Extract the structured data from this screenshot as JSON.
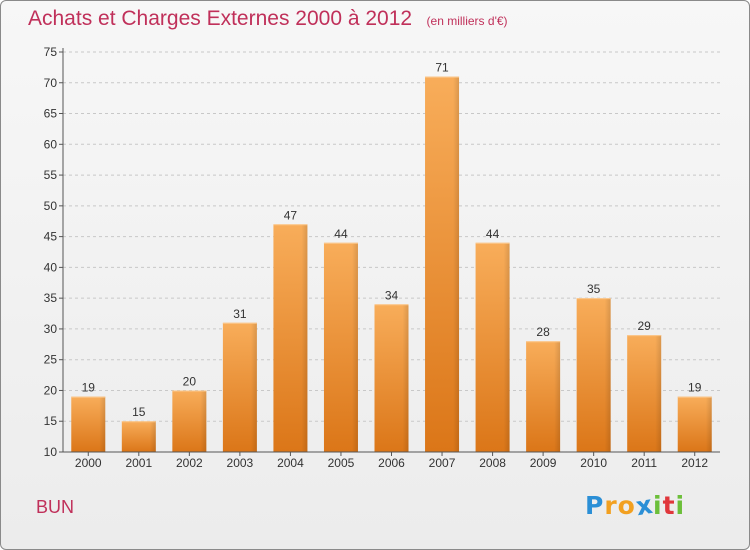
{
  "header": {
    "title": "Achats et Charges Externes 2000 à 2012",
    "subtitle": "(en milliers d'€)"
  },
  "footer": {
    "city": "BUN",
    "logo": {
      "letters": [
        "P",
        "r",
        "o",
        "x",
        "i",
        "t",
        "i"
      ],
      "colors": [
        "#2b8fd6",
        "#f2a020",
        "#f2a020",
        "#2b8fd6",
        "#6cbf3a",
        "#e0373c",
        "#6cbf3a"
      ]
    }
  },
  "chart_data": {
    "type": "bar",
    "categories": [
      "2000",
      "2001",
      "2002",
      "2003",
      "2004",
      "2005",
      "2006",
      "2007",
      "2008",
      "2009",
      "2010",
      "2011",
      "2012"
    ],
    "values": [
      19,
      15,
      20,
      31,
      47,
      44,
      34,
      71,
      44,
      28,
      35,
      29,
      19
    ],
    "yticks": [
      10,
      15,
      20,
      25,
      30,
      35,
      40,
      45,
      50,
      55,
      60,
      65,
      70,
      75
    ],
    "ylim": [
      10,
      75
    ],
    "grid": true,
    "bar_color": "#f0902a",
    "axis_text_color": "#333333"
  }
}
